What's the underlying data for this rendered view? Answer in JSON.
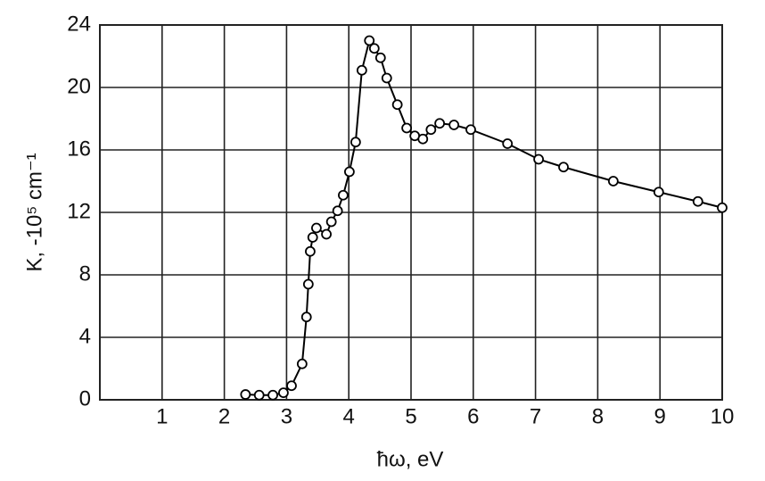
{
  "chart_data": {
    "type": "line",
    "x_label": "ħω, eV",
    "y_label": "K, -10⁵ cm⁻¹",
    "x": [
      2.34,
      2.56,
      2.78,
      2.95,
      3.08,
      3.25,
      3.32,
      3.35,
      3.38,
      3.42,
      3.48,
      3.64,
      3.72,
      3.82,
      3.91,
      4.01,
      4.11,
      4.21,
      4.33,
      4.41,
      4.51,
      4.61,
      4.78,
      4.93,
      5.06,
      5.19,
      5.32,
      5.46,
      5.69,
      5.96,
      6.55,
      7.05,
      7.45,
      8.25,
      8.98,
      9.61,
      10.0
    ],
    "series": [
      {
        "color": "#000000",
        "values": [
          0.34,
          0.3,
          0.3,
          0.45,
          0.9,
          2.3,
          5.3,
          7.4,
          9.5,
          10.4,
          11.0,
          10.6,
          11.4,
          12.1,
          13.1,
          14.6,
          16.5,
          21.1,
          23.0,
          22.5,
          21.9,
          20.6,
          18.9,
          17.4,
          16.9,
          16.7,
          17.3,
          17.7,
          17.6,
          17.3,
          16.4,
          15.4,
          14.9,
          14.0,
          13.3,
          12.7,
          12.3
        ]
      }
    ],
    "xlim": [
      0,
      10
    ],
    "xticks": [
      1,
      2,
      3,
      4,
      5,
      6,
      7,
      8,
      9,
      10
    ],
    "ylim": [
      0,
      24
    ],
    "yticks": [
      0,
      4,
      8,
      12,
      16,
      20,
      24
    ],
    "grid": true
  }
}
